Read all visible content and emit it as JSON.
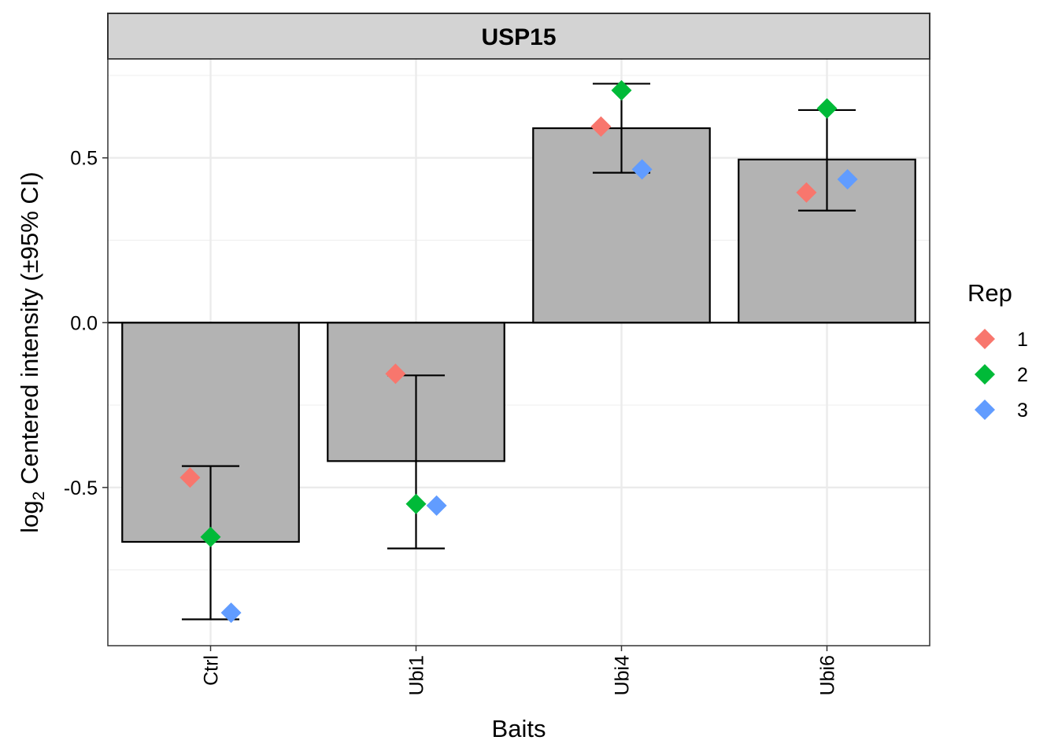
{
  "chart_data": {
    "type": "bar",
    "title": "USP15",
    "xlabel": "Baits",
    "ylabel_prefix": "log",
    "ylabel_subscript": "2",
    "ylabel_suffix": " Centered intensity (±95% CI)",
    "categories": [
      "Ctrl",
      "Ubi1",
      "Ubi4",
      "Ubi6"
    ],
    "values": [
      -0.665,
      -0.42,
      0.59,
      0.495
    ],
    "ci_low": [
      -0.9,
      -0.685,
      0.455,
      0.34
    ],
    "ci_high": [
      -0.435,
      -0.16,
      0.725,
      0.645
    ],
    "ylim": [
      -0.98,
      0.8
    ],
    "yticks": [
      -0.5,
      0.0,
      0.5
    ],
    "ytick_labels": [
      "-0.5",
      "0.0",
      "0.5"
    ],
    "grid": true,
    "legend_title": "Rep",
    "legend_position": "right",
    "series": [
      {
        "name": "1",
        "color": "#F8766D",
        "values": [
          -0.47,
          -0.155,
          0.595,
          0.395
        ]
      },
      {
        "name": "2",
        "color": "#00BA38",
        "values": [
          -0.65,
          -0.55,
          0.705,
          0.65
        ]
      },
      {
        "name": "3",
        "color": "#619CFF",
        "values": [
          -0.88,
          -0.555,
          0.465,
          0.435
        ]
      }
    ],
    "bar_color": "#B3B3B3",
    "strip_color": "#D9D9D9"
  }
}
